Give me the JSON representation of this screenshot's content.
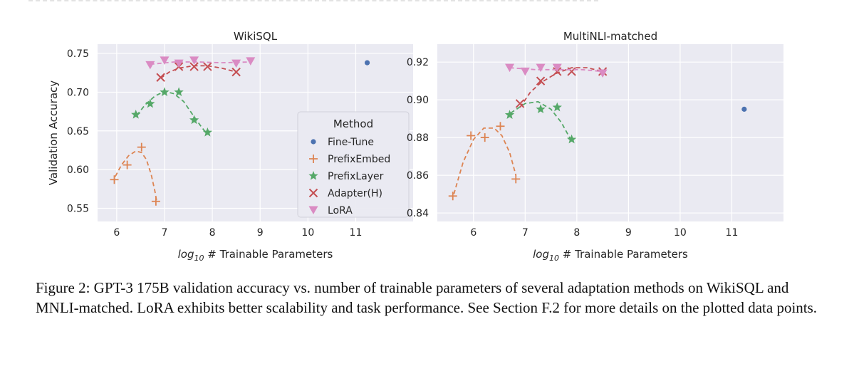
{
  "chart_data": [
    {
      "type": "scatter",
      "title": "WikiSQL",
      "xlabel_prefix": "log",
      "xlabel_sub": "10",
      "xlabel_rest": " # Trainable Parameters",
      "ylabel": "Validation Accuracy",
      "xlim": [
        5.6,
        12.2
      ],
      "ylim": [
        0.533,
        0.762
      ],
      "xticks": [
        6,
        7,
        8,
        9,
        10,
        11
      ],
      "yticks": [
        0.55,
        0.6,
        0.65,
        0.7,
        0.75
      ],
      "ytick_labels": [
        "0.55",
        "0.60",
        "0.65",
        "0.70",
        "0.75"
      ],
      "grid": true,
      "legend": {
        "title": "Method",
        "placement": "lower-right",
        "entries": [
          "Fine-Tune",
          "PrefixEmbed",
          "PrefixLayer",
          "Adapter(H)",
          "LoRA"
        ]
      },
      "series": [
        {
          "name": "Fine-Tune",
          "marker": "dot",
          "color": "#4c72b0",
          "x": [
            11.24
          ],
          "y": [
            0.738
          ],
          "fit": null
        },
        {
          "name": "PrefixEmbed",
          "marker": "plus",
          "color": "#dd8452",
          "x": [
            5.95,
            6.22,
            6.52,
            6.82
          ],
          "y": [
            0.587,
            0.606,
            0.629,
            0.559
          ],
          "fit": [
            [
              5.97,
              0.591
            ],
            [
              6.1,
              0.606
            ],
            [
              6.25,
              0.618
            ],
            [
              6.4,
              0.624
            ],
            [
              6.52,
              0.622
            ],
            [
              6.62,
              0.613
            ],
            [
              6.72,
              0.594
            ],
            [
              6.8,
              0.572
            ],
            [
              6.84,
              0.558
            ]
          ]
        },
        {
          "name": "PrefixLayer",
          "marker": "star",
          "color": "#55a868",
          "x": [
            6.4,
            6.7,
            7.0,
            7.3,
            7.62,
            7.9
          ],
          "y": [
            0.671,
            0.685,
            0.7,
            0.7,
            0.664,
            0.648
          ],
          "fit": [
            [
              6.42,
              0.67
            ],
            [
              6.6,
              0.684
            ],
            [
              6.8,
              0.695
            ],
            [
              7.0,
              0.701
            ],
            [
              7.2,
              0.698
            ],
            [
              7.4,
              0.688
            ],
            [
              7.6,
              0.67
            ],
            [
              7.75,
              0.657
            ],
            [
              7.9,
              0.645
            ]
          ]
        },
        {
          "name": "Adapter(H)",
          "marker": "x",
          "color": "#c44e52",
          "x": [
            6.92,
            7.3,
            7.62,
            7.9,
            8.5
          ],
          "y": [
            0.719,
            0.733,
            0.733,
            0.733,
            0.726
          ],
          "fit": [
            [
              6.92,
              0.718
            ],
            [
              7.1,
              0.726
            ],
            [
              7.3,
              0.731
            ],
            [
              7.6,
              0.734
            ],
            [
              7.9,
              0.734
            ],
            [
              8.2,
              0.731
            ],
            [
              8.5,
              0.726
            ]
          ]
        },
        {
          "name": "LoRA",
          "marker": "triangle-down",
          "color": "#da8bc3",
          "x": [
            6.7,
            7.0,
            7.3,
            7.62,
            8.5,
            8.8
          ],
          "y": [
            0.735,
            0.741,
            0.737,
            0.741,
            0.737,
            0.74
          ],
          "fit": [
            [
              6.7,
              0.736
            ],
            [
              7.2,
              0.739
            ],
            [
              7.7,
              0.739
            ],
            [
              8.2,
              0.738
            ],
            [
              8.8,
              0.739
            ]
          ]
        }
      ]
    },
    {
      "type": "scatter",
      "title": "MultiNLI-matched",
      "xlabel_prefix": "log",
      "xlabel_sub": "10",
      "xlabel_rest": " # Trainable Parameters",
      "ylabel": "",
      "xlim": [
        5.3,
        12.0
      ],
      "ylim": [
        0.8355,
        0.9295
      ],
      "xticks": [
        6,
        7,
        8,
        9,
        10,
        11
      ],
      "yticks": [
        0.84,
        0.86,
        0.88,
        0.9,
        0.92
      ],
      "ytick_labels": [
        "0.84",
        "0.86",
        "0.88",
        "0.90",
        "0.92"
      ],
      "grid": true,
      "series": [
        {
          "name": "Fine-Tune",
          "marker": "dot",
          "color": "#4c72b0",
          "x": [
            11.24
          ],
          "y": [
            0.895
          ],
          "fit": null
        },
        {
          "name": "PrefixEmbed",
          "marker": "plus",
          "color": "#dd8452",
          "x": [
            5.6,
            5.95,
            6.22,
            6.52,
            6.82
          ],
          "y": [
            0.849,
            0.881,
            0.88,
            0.886,
            0.858
          ],
          "fit": [
            [
              5.62,
              0.85
            ],
            [
              5.8,
              0.867
            ],
            [
              6.0,
              0.879
            ],
            [
              6.2,
              0.885
            ],
            [
              6.4,
              0.885
            ],
            [
              6.55,
              0.881
            ],
            [
              6.7,
              0.872
            ],
            [
              6.82,
              0.86
            ]
          ]
        },
        {
          "name": "PrefixLayer",
          "marker": "star",
          "color": "#55a868",
          "x": [
            6.7,
            7.3,
            7.62,
            7.9
          ],
          "y": [
            0.892,
            0.895,
            0.896,
            0.879
          ],
          "fit": [
            [
              6.72,
              0.893
            ],
            [
              7.0,
              0.898
            ],
            [
              7.25,
              0.899
            ],
            [
              7.5,
              0.895
            ],
            [
              7.7,
              0.888
            ],
            [
              7.9,
              0.878
            ]
          ]
        },
        {
          "name": "Adapter(H)",
          "marker": "x",
          "color": "#c44e52",
          "x": [
            6.9,
            7.3,
            7.62,
            7.9,
            8.5
          ],
          "y": [
            0.898,
            0.91,
            0.915,
            0.915,
            0.915
          ],
          "fit": [
            [
              6.9,
              0.896
            ],
            [
              7.1,
              0.904
            ],
            [
              7.3,
              0.909
            ],
            [
              7.6,
              0.914
            ],
            [
              7.9,
              0.917
            ],
            [
              8.2,
              0.917
            ],
            [
              8.5,
              0.915
            ]
          ]
        },
        {
          "name": "LoRA",
          "marker": "triangle-down",
          "color": "#da8bc3",
          "x": [
            6.7,
            7.0,
            7.3,
            7.62,
            8.5
          ],
          "y": [
            0.917,
            0.915,
            0.917,
            0.917,
            0.914
          ],
          "fit": [
            [
              6.7,
              0.917
            ],
            [
              7.2,
              0.916
            ],
            [
              7.7,
              0.916
            ],
            [
              8.1,
              0.916
            ],
            [
              8.5,
              0.915
            ]
          ]
        }
      ]
    }
  ],
  "caption": "Figure 2: GPT-3 175B validation accuracy vs. number of trainable parameters of several adaptation methods on WikiSQL and MNLI-matched. LoRA exhibits better scalability and task performance. See Section F.2 for more details on the plotted data points."
}
